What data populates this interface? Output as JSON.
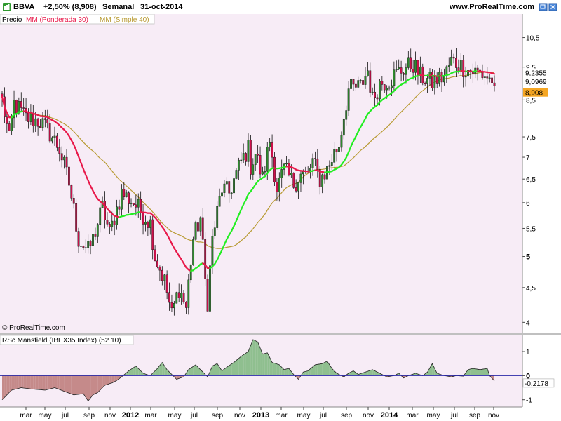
{
  "header": {
    "symbol": "BBVA",
    "change": "+2,50% (8,908)",
    "period": "Semanal",
    "date": "31-oct-2014",
    "site": "www.ProRealTime.com"
  },
  "copyright": "© ProRealTime.com",
  "colors": {
    "panel_bg": "#f7ecf6",
    "wma": "#e8194a",
    "wma_up": "#22ee22",
    "sma": "#b89a32",
    "candle_up": "#2e8b2e",
    "candle_down": "#d0104c",
    "rsc_pos": "#8fbf8f",
    "rsc_neg": "#c58a8a",
    "zero_line": "#2a2aa8"
  },
  "chart_data": [
    {
      "type": "candlestick",
      "legend": [
        "Precio",
        "MM (Ponderada 30)",
        "MM (Simple 40)"
      ],
      "y_scale": "log",
      "ylim": [
        3.9,
        11.0
      ],
      "yticks": [
        {
          "v": 10.5,
          "label": "10,5"
        },
        {
          "v": 9.5,
          "label": "9,5"
        },
        {
          "v": 8.5,
          "label": "8,5"
        },
        {
          "v": 7.5,
          "label": "7,5"
        },
        {
          "v": 7,
          "label": "7"
        },
        {
          "v": 6.5,
          "label": "6,5"
        },
        {
          "v": 6,
          "label": "6"
        },
        {
          "v": 5.5,
          "label": "5,5"
        },
        {
          "v": 5,
          "label": "5",
          "bold": true
        },
        {
          "v": 4.5,
          "label": "4,5"
        },
        {
          "v": 4,
          "label": "4"
        }
      ],
      "x_months": [
        "mar",
        "may",
        "jul",
        "sep",
        "nov",
        "2012",
        "mar",
        "may",
        "jul",
        "sep",
        "nov",
        "2013",
        "mar",
        "may",
        "jul",
        "sep",
        "nov",
        "2014",
        "mar",
        "may",
        "jul",
        "sep",
        "nov"
      ],
      "price_anchors": [
        [
          0,
          8.5
        ],
        [
          3,
          7.4
        ],
        [
          5,
          8.4
        ],
        [
          10,
          8.0
        ],
        [
          16,
          7.9
        ],
        [
          20,
          7.6
        ],
        [
          24,
          7.2
        ],
        [
          28,
          6.4
        ],
        [
          32,
          5.3
        ],
        [
          36,
          5.1
        ],
        [
          38,
          5.3
        ],
        [
          42,
          5.9
        ],
        [
          45,
          5.4
        ],
        [
          50,
          6.2
        ],
        [
          55,
          6.0
        ],
        [
          62,
          5.6
        ],
        [
          64,
          5.0
        ],
        [
          68,
          4.6
        ],
        [
          71,
          4.1
        ],
        [
          74,
          4.5
        ],
        [
          77,
          4.2
        ],
        [
          80,
          5.3
        ],
        [
          83,
          5.7
        ],
        [
          85,
          4.6
        ],
        [
          86,
          4.3
        ],
        [
          88,
          5.3
        ],
        [
          92,
          6.3
        ],
        [
          95,
          6.2
        ],
        [
          100,
          6.9
        ],
        [
          103,
          7.2
        ],
        [
          104,
          6.8
        ],
        [
          106,
          7.1
        ],
        [
          109,
          6.5
        ],
        [
          112,
          7.4
        ],
        [
          115,
          6.3
        ],
        [
          118,
          6.7
        ],
        [
          122,
          6.4
        ],
        [
          125,
          6.6
        ],
        [
          128,
          6.6
        ],
        [
          130,
          6.9
        ],
        [
          133,
          6.5
        ],
        [
          136,
          6.7
        ],
        [
          139,
          7.1
        ],
        [
          141,
          7.3
        ],
        [
          145,
          8.8
        ],
        [
          150,
          8.9
        ],
        [
          153,
          9.4
        ],
        [
          155,
          8.5
        ],
        [
          158,
          9.0
        ],
        [
          162,
          9.1
        ],
        [
          165,
          9.3
        ],
        [
          169,
          9.5
        ],
        [
          172,
          9.6
        ],
        [
          175,
          9.2
        ],
        [
          178,
          9.1
        ],
        [
          180,
          9.0
        ],
        [
          182,
          9.1
        ],
        [
          185,
          9.2
        ],
        [
          188,
          9.7
        ],
        [
          191,
          9.6
        ],
        [
          195,
          9.4
        ],
        [
          200,
          9.3
        ],
        [
          203,
          9.2
        ],
        [
          206,
          8.91
        ]
      ],
      "last_values": {
        "wma": "9,2355",
        "sma": "9,0969",
        "price": "8,908"
      }
    },
    {
      "type": "area",
      "title": "RSc Mansfield (IBEX35 Index) (52 10)",
      "ylim": [
        -1.3,
        1.7
      ],
      "yticks": [
        {
          "v": 1,
          "label": "1"
        },
        {
          "v": 0,
          "label": "0",
          "bold": true
        },
        {
          "v": -1,
          "label": "-1"
        }
      ],
      "x_months": [
        "mar",
        "may",
        "jul",
        "sep",
        "nov",
        "2012",
        "mar",
        "may",
        "jul",
        "sep",
        "nov",
        "2013",
        "mar",
        "may",
        "jul",
        "sep",
        "nov",
        "2014",
        "mar",
        "may",
        "jul",
        "sep",
        "nov"
      ],
      "anchors": [
        [
          0,
          -1.0
        ],
        [
          4,
          -0.6
        ],
        [
          8,
          -0.5
        ],
        [
          12,
          -0.55
        ],
        [
          18,
          -0.6
        ],
        [
          22,
          -0.5
        ],
        [
          26,
          -0.65
        ],
        [
          30,
          -0.8
        ],
        [
          34,
          -0.75
        ],
        [
          36,
          -1.05
        ],
        [
          38,
          -0.8
        ],
        [
          40,
          -0.7
        ],
        [
          43,
          -0.4
        ],
        [
          46,
          -0.3
        ],
        [
          48,
          -0.2
        ],
        [
          50,
          -0.05
        ],
        [
          53,
          0.2
        ],
        [
          56,
          0.4
        ],
        [
          59,
          0.1
        ],
        [
          62,
          0.0
        ],
        [
          65,
          0.3
        ],
        [
          67,
          0.55
        ],
        [
          69,
          0.25
        ],
        [
          71,
          0.05
        ],
        [
          73,
          -0.15
        ],
        [
          76,
          -0.05
        ],
        [
          78,
          0.25
        ],
        [
          81,
          0.45
        ],
        [
          83,
          0.25
        ],
        [
          85,
          0.05
        ],
        [
          86,
          -0.05
        ],
        [
          88,
          0.4
        ],
        [
          90,
          0.5
        ],
        [
          92,
          0.2
        ],
        [
          94,
          0.35
        ],
        [
          97,
          0.55
        ],
        [
          100,
          0.8
        ],
        [
          103,
          1.0
        ],
        [
          105,
          1.5
        ],
        [
          107,
          1.4
        ],
        [
          109,
          0.9
        ],
        [
          111,
          0.95
        ],
        [
          113,
          0.55
        ],
        [
          116,
          0.45
        ],
        [
          118,
          0.25
        ],
        [
          120,
          0.3
        ],
        [
          122,
          0.05
        ],
        [
          124,
          -0.15
        ],
        [
          126,
          0.15
        ],
        [
          128,
          0.2
        ],
        [
          131,
          0.45
        ],
        [
          134,
          0.5
        ],
        [
          136,
          0.6
        ],
        [
          138,
          0.3
        ],
        [
          140,
          0.1
        ],
        [
          143,
          -0.05
        ],
        [
          145,
          0.1
        ],
        [
          147,
          0.2
        ],
        [
          149,
          0.05
        ],
        [
          152,
          0.15
        ],
        [
          155,
          0.25
        ],
        [
          158,
          0.1
        ],
        [
          161,
          -0.05
        ],
        [
          164,
          0.0
        ],
        [
          166,
          0.1
        ],
        [
          168,
          -0.1
        ],
        [
          170,
          0.0
        ],
        [
          173,
          0.1
        ],
        [
          176,
          0.0
        ],
        [
          178,
          0.15
        ],
        [
          180,
          0.5
        ],
        [
          182,
          0.1
        ],
        [
          185,
          0.0
        ],
        [
          188,
          -0.05
        ],
        [
          190,
          0.0
        ],
        [
          193,
          -0.02
        ],
        [
          195,
          0.25
        ],
        [
          197,
          0.3
        ],
        [
          200,
          0.25
        ],
        [
          203,
          0.3
        ],
        [
          204,
          0.0
        ],
        [
          206,
          -0.22
        ]
      ],
      "last_value": "-0,2178"
    }
  ]
}
